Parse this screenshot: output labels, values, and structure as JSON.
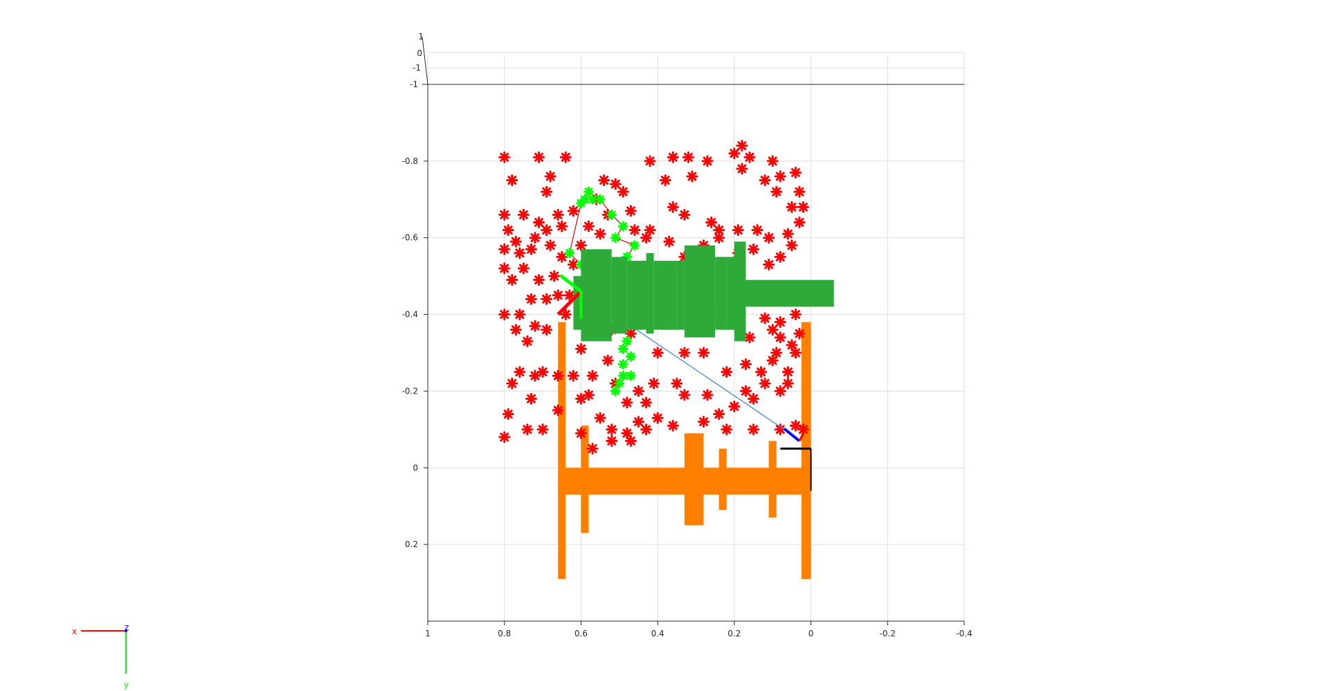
{
  "chart_data": {
    "type": "scatter",
    "title": "",
    "xlabel": "",
    "ylabel": "",
    "grid": true,
    "x_reversed": true,
    "y_reversed": true,
    "xlim": [
      -0.4,
      1
    ],
    "ylim": [
      -1,
      0.4
    ],
    "x_ticks": [
      1,
      0.8,
      0.6,
      0.4,
      0.2,
      0,
      -0.2,
      -0.4
    ],
    "y_ticks": [
      -0.8,
      -0.6,
      -0.4,
      -0.2,
      0,
      0.2
    ],
    "z_ticks": [
      "1",
      "0",
      "-1",
      "-1"
    ],
    "colors": {
      "obstacles": "#ff0000",
      "path_nodes": "#00ff00",
      "path_line": "#dd0000",
      "robot_arm": "#2eaa3a",
      "table": "#ff7f00",
      "trajectory": "#3a7fd0",
      "base_frame": "#000000",
      "frame_x": "#ff0000",
      "frame_y": "#00ff00",
      "frame_z": "#0000ff"
    },
    "obstacles": [
      [
        0.8,
        -0.81
      ],
      [
        0.71,
        -0.81
      ],
      [
        0.64,
        -0.81
      ],
      [
        0.78,
        -0.75
      ],
      [
        0.68,
        -0.76
      ],
      [
        0.69,
        -0.72
      ],
      [
        0.8,
        -0.66
      ],
      [
        0.75,
        -0.66
      ],
      [
        0.71,
        -0.64
      ],
      [
        0.66,
        -0.66
      ],
      [
        0.79,
        -0.62
      ],
      [
        0.77,
        -0.59
      ],
      [
        0.72,
        -0.6
      ],
      [
        0.69,
        -0.62
      ],
      [
        0.65,
        -0.63
      ],
      [
        0.8,
        -0.57
      ],
      [
        0.76,
        -0.56
      ],
      [
        0.73,
        -0.57
      ],
      [
        0.68,
        -0.58
      ],
      [
        0.8,
        -0.52
      ],
      [
        0.75,
        -0.52
      ],
      [
        0.71,
        -0.49
      ],
      [
        0.78,
        -0.49
      ],
      [
        0.73,
        -0.44
      ],
      [
        0.69,
        -0.44
      ],
      [
        0.66,
        -0.45
      ],
      [
        0.8,
        -0.4
      ],
      [
        0.76,
        -0.4
      ],
      [
        0.72,
        -0.37
      ],
      [
        0.77,
        -0.36
      ],
      [
        0.74,
        -0.33
      ],
      [
        0.69,
        -0.36
      ],
      [
        0.64,
        -0.4
      ],
      [
        0.76,
        -0.25
      ],
      [
        0.72,
        -0.24
      ],
      [
        0.78,
        -0.22
      ],
      [
        0.7,
        -0.25
      ],
      [
        0.73,
        -0.18
      ],
      [
        0.66,
        -0.24
      ],
      [
        0.62,
        -0.24
      ],
      [
        0.6,
        -0.18
      ],
      [
        0.79,
        -0.14
      ],
      [
        0.74,
        -0.1
      ],
      [
        0.8,
        -0.08
      ],
      [
        0.7,
        -0.1
      ],
      [
        0.6,
        -0.09
      ],
      [
        0.55,
        -0.13
      ],
      [
        0.52,
        -0.1
      ],
      [
        0.57,
        -0.24
      ],
      [
        0.53,
        -0.28
      ],
      [
        0.6,
        -0.31
      ],
      [
        0.51,
        -0.22
      ],
      [
        0.48,
        -0.17
      ],
      [
        0.45,
        -0.2
      ],
      [
        0.41,
        -0.22
      ],
      [
        0.35,
        -0.22
      ],
      [
        0.33,
        -0.19
      ],
      [
        0.27,
        -0.19
      ],
      [
        0.24,
        -0.14
      ],
      [
        0.2,
        -0.16
      ],
      [
        0.17,
        -0.2
      ],
      [
        0.15,
        -0.18
      ],
      [
        0.12,
        -0.22
      ],
      [
        0.08,
        -0.2
      ],
      [
        0.06,
        -0.25
      ],
      [
        0.22,
        -0.25
      ],
      [
        0.17,
        -0.27
      ],
      [
        0.13,
        -0.25
      ],
      [
        0.1,
        -0.28
      ],
      [
        0.09,
        -0.3
      ],
      [
        0.04,
        -0.3
      ],
      [
        0.03,
        -0.35
      ],
      [
        0.1,
        -0.36
      ],
      [
        0.08,
        -0.34
      ],
      [
        0.04,
        -0.4
      ],
      [
        0.28,
        -0.3
      ],
      [
        0.33,
        -0.3
      ],
      [
        0.4,
        -0.3
      ],
      [
        0.43,
        -0.17
      ],
      [
        0.4,
        -0.13
      ],
      [
        0.36,
        -0.11
      ],
      [
        0.28,
        -0.12
      ],
      [
        0.22,
        -0.1
      ],
      [
        0.15,
        -0.1
      ],
      [
        0.08,
        -0.1
      ],
      [
        0.04,
        -0.11
      ],
      [
        0.48,
        -0.09
      ],
      [
        0.45,
        -0.12
      ],
      [
        0.57,
        -0.05
      ],
      [
        0.47,
        -0.07
      ],
      [
        0.43,
        -0.1
      ],
      [
        0.52,
        -0.07
      ],
      [
        0.42,
        -0.8
      ],
      [
        0.36,
        -0.81
      ],
      [
        0.32,
        -0.81
      ],
      [
        0.27,
        -0.8
      ],
      [
        0.18,
        -0.84
      ],
      [
        0.2,
        -0.82
      ],
      [
        0.16,
        -0.81
      ],
      [
        0.1,
        -0.8
      ],
      [
        0.18,
        -0.78
      ],
      [
        0.08,
        -0.76
      ],
      [
        0.04,
        -0.77
      ],
      [
        0.03,
        -0.72
      ],
      [
        0.38,
        -0.75
      ],
      [
        0.31,
        -0.76
      ],
      [
        0.36,
        -0.68
      ],
      [
        0.33,
        -0.66
      ],
      [
        0.26,
        -0.64
      ],
      [
        0.24,
        -0.62
      ],
      [
        0.19,
        -0.62
      ],
      [
        0.14,
        -0.62
      ],
      [
        0.11,
        -0.6
      ],
      [
        0.06,
        -0.61
      ],
      [
        0.03,
        -0.64
      ],
      [
        0.02,
        -0.68
      ],
      [
        0.05,
        -0.68
      ],
      [
        0.09,
        -0.72
      ],
      [
        0.12,
        -0.75
      ],
      [
        0.05,
        -0.58
      ],
      [
        0.08,
        -0.55
      ],
      [
        0.11,
        -0.53
      ],
      [
        0.15,
        -0.57
      ],
      [
        0.19,
        -0.56
      ],
      [
        0.24,
        -0.6
      ],
      [
        0.28,
        -0.58
      ],
      [
        0.33,
        -0.55
      ],
      [
        0.37,
        -0.59
      ],
      [
        0.42,
        -0.62
      ],
      [
        0.46,
        -0.62
      ],
      [
        0.53,
        -0.66
      ],
      [
        0.55,
        -0.61
      ],
      [
        0.51,
        -0.74
      ],
      [
        0.54,
        -0.75
      ],
      [
        0.49,
        -0.72
      ],
      [
        0.56,
        -0.7
      ],
      [
        0.47,
        -0.67
      ],
      [
        0.43,
        -0.6
      ],
      [
        0.58,
        -0.63
      ],
      [
        0.62,
        -0.67
      ],
      [
        0.6,
        -0.58
      ],
      [
        0.65,
        -0.55
      ],
      [
        0.67,
        -0.5
      ],
      [
        0.62,
        -0.53
      ],
      [
        0.63,
        -0.45
      ],
      [
        0.6,
        -0.47
      ],
      [
        0.56,
        -0.42
      ],
      [
        0.52,
        -0.36
      ],
      [
        0.47,
        -0.35
      ],
      [
        0.43,
        -0.38
      ],
      [
        0.13,
        -0.44
      ],
      [
        0.08,
        -0.38
      ],
      [
        0.05,
        -0.32
      ],
      [
        0.12,
        -0.39
      ],
      [
        0.16,
        -0.34
      ],
      [
        0.02,
        -0.1
      ],
      [
        0.06,
        -0.22
      ],
      [
        0.66,
        -0.15
      ],
      [
        0.58,
        -0.19
      ]
    ],
    "path_nodes": [
      [
        0.6,
        -0.69
      ],
      [
        0.59,
        -0.7
      ],
      [
        0.57,
        -0.7
      ],
      [
        0.58,
        -0.72
      ],
      [
        0.55,
        -0.7
      ],
      [
        0.52,
        -0.66
      ],
      [
        0.49,
        -0.63
      ],
      [
        0.51,
        -0.6
      ],
      [
        0.46,
        -0.58
      ],
      [
        0.48,
        -0.55
      ],
      [
        0.63,
        -0.56
      ],
      [
        0.6,
        -0.53
      ],
      [
        0.5,
        -0.5
      ],
      [
        0.47,
        -0.29
      ],
      [
        0.49,
        -0.31
      ],
      [
        0.48,
        -0.33
      ],
      [
        0.49,
        -0.24
      ],
      [
        0.47,
        -0.24
      ],
      [
        0.5,
        -0.22
      ],
      [
        0.51,
        -0.2
      ],
      [
        0.49,
        -0.27
      ]
    ],
    "path_polyline": [
      [
        0.6,
        -0.69
      ],
      [
        0.58,
        -0.72
      ],
      [
        0.55,
        -0.7
      ],
      [
        0.52,
        -0.66
      ],
      [
        0.49,
        -0.63
      ],
      [
        0.51,
        -0.6
      ],
      [
        0.46,
        -0.58
      ],
      [
        0.48,
        -0.55
      ]
    ],
    "path_polyline_2": [
      [
        0.6,
        -0.69
      ],
      [
        0.63,
        -0.56
      ],
      [
        0.6,
        -0.53
      ],
      [
        0.55,
        -0.49
      ]
    ],
    "trajectory_line": [
      [
        0.47,
        -0.37
      ],
      [
        0.07,
        -0.1
      ],
      [
        0.03,
        -0.07
      ]
    ],
    "arm_links": [
      {
        "x0": 0.62,
        "x1": 0.54,
        "y0": -0.5,
        "y1": -0.36
      },
      {
        "x0": 0.6,
        "x1": 0.52,
        "y0": -0.57,
        "y1": -0.33
      },
      {
        "x0": 0.52,
        "x1": 0.48,
        "y0": -0.55,
        "y1": -0.35
      },
      {
        "x0": 0.48,
        "x1": 0.43,
        "y0": -0.54,
        "y1": -0.36
      },
      {
        "x0": 0.43,
        "x1": 0.41,
        "y0": -0.56,
        "y1": -0.35
      },
      {
        "x0": 0.41,
        "x1": 0.35,
        "y0": -0.54,
        "y1": -0.36
      },
      {
        "x0": 0.35,
        "x1": 0.33,
        "y0": -0.54,
        "y1": -0.36
      },
      {
        "x0": 0.33,
        "x1": 0.25,
        "y0": -0.58,
        "y1": -0.34
      },
      {
        "x0": 0.25,
        "x1": 0.22,
        "y0": -0.55,
        "y1": -0.36
      },
      {
        "x0": 0.22,
        "x1": 0.17,
        "y0": -0.55,
        "y1": -0.36
      },
      {
        "x0": 0.2,
        "x1": 0.17,
        "y0": -0.59,
        "y1": -0.33
      },
      {
        "x0": 0.17,
        "x1": -0.06,
        "y0": -0.49,
        "y1": -0.42
      }
    ],
    "table_parts": [
      {
        "x0": 0.66,
        "x1": 0.64,
        "y0": -0.38,
        "y1": 0.29
      },
      {
        "x0": 0.025,
        "x1": 0.0,
        "y0": -0.38,
        "y1": 0.29
      },
      {
        "x0": 0.66,
        "x1": 0.0,
        "y0": 0.0,
        "y1": 0.07
      },
      {
        "x0": 0.6,
        "x1": 0.58,
        "y0": -0.11,
        "y1": 0.17
      },
      {
        "x0": 0.33,
        "x1": 0.31,
        "y0": -0.09,
        "y1": 0.15
      },
      {
        "x0": 0.31,
        "x1": 0.28,
        "y0": -0.09,
        "y1": 0.15
      },
      {
        "x0": 0.24,
        "x1": 0.22,
        "y0": -0.05,
        "y1": 0.11
      },
      {
        "x0": 0.11,
        "x1": 0.09,
        "y0": -0.07,
        "y1": 0.13
      }
    ],
    "base_frame": {
      "x": 0.0,
      "y": -0.05,
      "len": 0.08
    },
    "start_frame": {
      "x": 0.6,
      "y": -0.46,
      "len": 0.06
    },
    "end_frame": {
      "x": 0.03,
      "y": -0.07,
      "len": 0.04
    },
    "axes_triad_labels": {
      "x": "x",
      "y": "y",
      "z": "z"
    }
  }
}
